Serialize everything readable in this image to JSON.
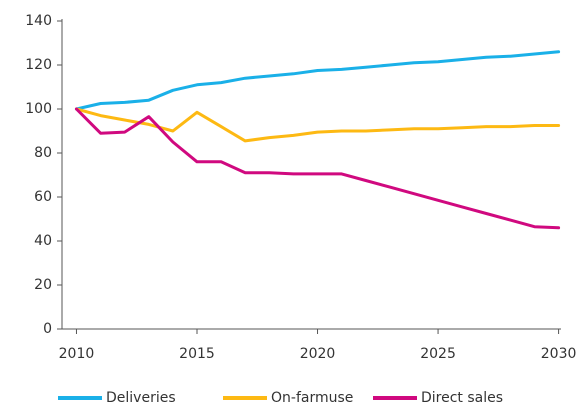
{
  "chart_data": {
    "type": "line",
    "x": [
      2010,
      2011,
      2012,
      2013,
      2014,
      2015,
      2016,
      2017,
      2018,
      2019,
      2020,
      2021,
      2022,
      2023,
      2024,
      2025,
      2026,
      2027,
      2028,
      2029,
      2030
    ],
    "series": [
      {
        "name": "Deliveries",
        "color": "#1ab0e8",
        "values": [
          100,
          102.5,
          103,
          104,
          108.5,
          111,
          112,
          114,
          115,
          116,
          117.5,
          118,
          119,
          120,
          121,
          121.5,
          122.5,
          123.5,
          124,
          125,
          126
        ]
      },
      {
        "name": "On-farmuse",
        "color": "#fdb913",
        "values": [
          100,
          97,
          95,
          93,
          90,
          98.5,
          92,
          85.5,
          87,
          88,
          89.5,
          90,
          90,
          90.5,
          91,
          91,
          91.5,
          92,
          92,
          92.5,
          92.5
        ]
      },
      {
        "name": "Direct sales",
        "color": "#d0097f",
        "values": [
          100,
          89,
          89.5,
          96.5,
          85,
          76,
          76,
          71,
          71,
          70.5,
          70.5,
          70.5,
          67.5,
          64.5,
          61.5,
          58.5,
          55.5,
          52.5,
          49.5,
          46.5,
          46
        ]
      }
    ],
    "xlim": [
      2009.4,
      2030.1
    ],
    "xticks": [
      2010,
      2015,
      2020,
      2025,
      2030
    ],
    "ylim": [
      0,
      140
    ],
    "yticks": [
      0,
      20,
      40,
      60,
      80,
      100,
      120,
      140
    ],
    "grid": false,
    "legend": "bottom"
  }
}
